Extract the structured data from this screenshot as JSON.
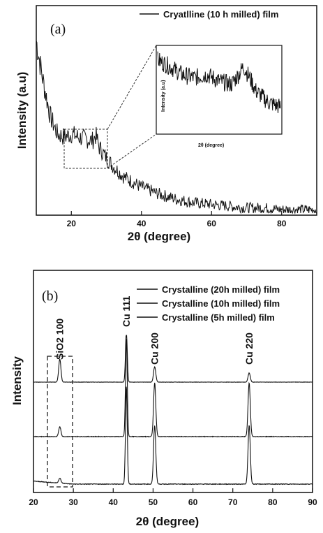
{
  "chart_data": [
    {
      "type": "line",
      "panel_label": "(a)",
      "xlabel": "2θ (degree)",
      "ylabel": "Intensity (a.u)",
      "xlim": [
        10,
        90
      ],
      "xticks": [
        "20",
        "40",
        "60",
        "80"
      ],
      "series": [
        {
          "name": "Cryatlline (10 h milled) film",
          "x": [
            10,
            12,
            14,
            16,
            18,
            20,
            22,
            24,
            26,
            27,
            28,
            30,
            32,
            35,
            40,
            45,
            50,
            55,
            60,
            65,
            70,
            75,
            80,
            85,
            90
          ],
          "y": [
            1.0,
            0.76,
            0.56,
            0.46,
            0.44,
            0.46,
            0.44,
            0.43,
            0.42,
            0.45,
            0.38,
            0.32,
            0.27,
            0.21,
            0.15,
            0.11,
            0.08,
            0.06,
            0.05,
            0.04,
            0.03,
            0.03,
            0.02,
            0.02,
            0.02
          ]
        }
      ],
      "inset": {
        "xlabel": "2θ (degree)",
        "ylabel": "Intensity (a.u)",
        "xlim": [
          20,
          30
        ],
        "x": [
          20,
          21,
          22,
          23,
          24,
          25,
          26,
          26.5,
          27,
          27.5,
          28,
          29,
          30
        ],
        "y": [
          0.88,
          0.8,
          0.7,
          0.66,
          0.7,
          0.62,
          0.58,
          0.68,
          0.8,
          0.66,
          0.5,
          0.36,
          0.3
        ]
      }
    },
    {
      "type": "line",
      "panel_label": "(b)",
      "xlabel": "2θ (degree)",
      "ylabel": "Intensity",
      "xlim": [
        20,
        90
      ],
      "xticks": [
        "20",
        "30",
        "40",
        "50",
        "60",
        "70",
        "80",
        "90"
      ],
      "annotations": [
        "SiO2 100",
        "Cu 111",
        "Cu 200",
        "Cu 220"
      ],
      "series": [
        {
          "name": "Crystalline (20h milled) film",
          "peaks": [
            [
              26.6,
              0.45
            ],
            [
              43.3,
              1.0
            ],
            [
              50.4,
              0.3
            ],
            [
              74.1,
              0.18
            ]
          ]
        },
        {
          "name": "Crystalline (10h milled) film",
          "peaks": [
            [
              26.6,
              0.1
            ],
            [
              43.3,
              1.0
            ],
            [
              50.4,
              0.55
            ],
            [
              74.1,
              0.55
            ]
          ]
        },
        {
          "name": "Crystalline (5h milled) film",
          "peaks": [
            [
              26.6,
              0.05
            ],
            [
              43.3,
              1.0
            ],
            [
              50.4,
              0.6
            ],
            [
              74.1,
              0.6
            ]
          ]
        }
      ]
    }
  ]
}
